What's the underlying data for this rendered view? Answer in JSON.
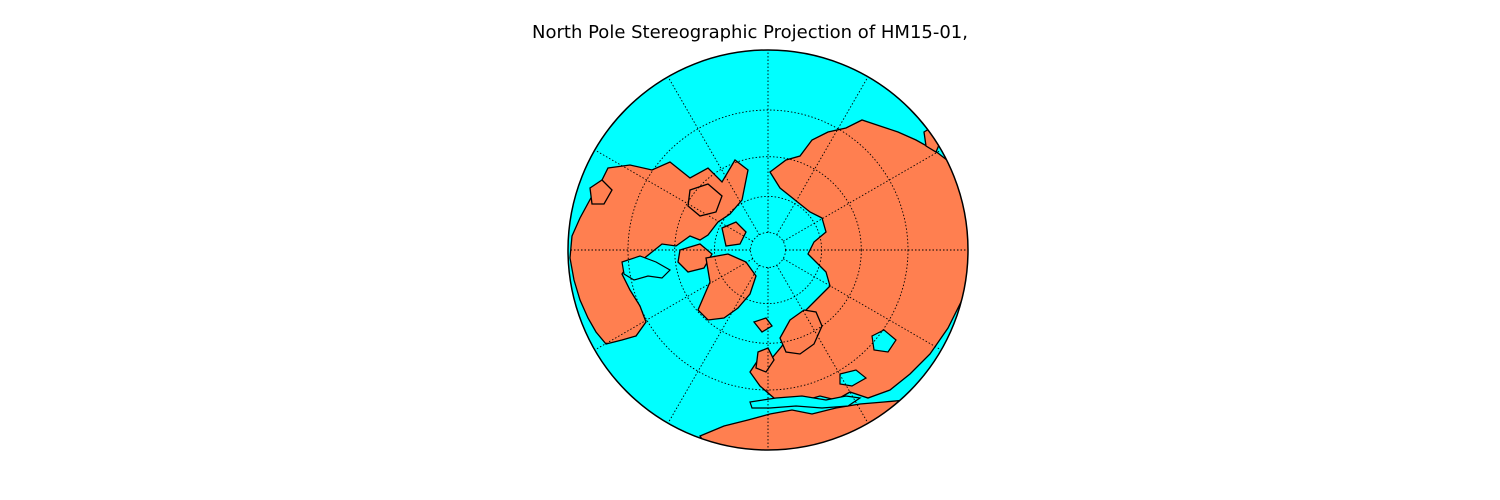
{
  "figure": {
    "title": "North Pole Stereographic Projection of HM15-01,"
  },
  "map": {
    "projection": "north-polar-stereographic",
    "ocean_color": "#00ffff",
    "land_color": "#ff7f50",
    "coastline_color": "#000000",
    "graticule": {
      "style": "dotted",
      "parallels_deg": [
        0,
        20,
        40,
        60,
        80
      ],
      "meridian_step_deg": 30
    }
  }
}
